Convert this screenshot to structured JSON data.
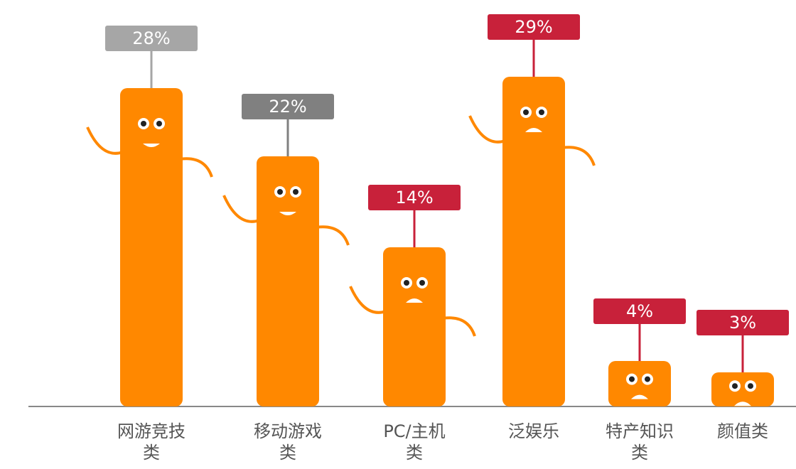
{
  "chart_data": {
    "type": "bar",
    "categories": [
      "网游竞技类",
      "移动游戏类",
      "PC/主机类",
      "泛娱乐",
      "特产知识类",
      "颜值类"
    ],
    "values": [
      28,
      22,
      14,
      29,
      4,
      3
    ],
    "value_labels": [
      "28%",
      "22%",
      "14%",
      "29%",
      "4%",
      "3%"
    ],
    "color": "#ff8800",
    "label_colors": [
      "#a6a6a6",
      "#808080",
      "#c8213a",
      "#c8213a",
      "#c8213a",
      "#c8213a"
    ]
  }
}
